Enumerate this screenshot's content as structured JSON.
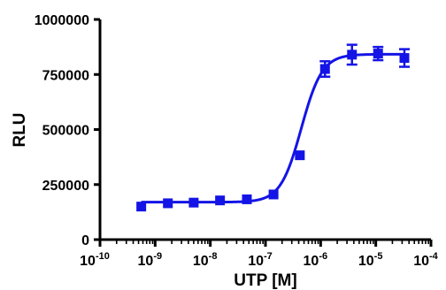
{
  "chart_data": {
    "type": "scatter",
    "xlabel": "UTP [M]",
    "ylabel": "RLU",
    "x_scale": "log",
    "xlim": [
      1e-10,
      0.0001
    ],
    "ylim": [
      0,
      1000000
    ],
    "y_ticks": [
      0,
      250000,
      500000,
      750000,
      1000000
    ],
    "y_tick_labels": [
      "0",
      "250000",
      "500000",
      "750000",
      "1000000"
    ],
    "x_tick_labels": [
      {
        "base": "10",
        "exp": "-10"
      },
      {
        "base": "10",
        "exp": "-9"
      },
      {
        "base": "10",
        "exp": "-8"
      },
      {
        "base": "10",
        "exp": "-7"
      },
      {
        "base": "10",
        "exp": "-6"
      },
      {
        "base": "10",
        "exp": "-5"
      },
      {
        "base": "10",
        "exp": "-4"
      }
    ],
    "grid": false,
    "marker": "square",
    "color": "#1414e6",
    "series": [
      {
        "x": [
          5.6e-10,
          1.7e-09,
          5e-09,
          1.5e-08,
          4.6e-08,
          1.4e-07,
          4.2e-07,
          1.2e-06,
          3.7e-06,
          1.1e-05,
          3.3e-05
        ],
        "y": [
          150000,
          165000,
          168000,
          178000,
          183000,
          205000,
          383000,
          775000,
          840000,
          845000,
          825000
        ],
        "yerr": [
          8000,
          6000,
          5000,
          7000,
          6000,
          9000,
          12000,
          35000,
          45000,
          30000,
          40000
        ]
      }
    ],
    "fit": {
      "type": "sigmoidal dose-response",
      "bottom": 170000,
      "top": 842000,
      "log_ec50": -6.35,
      "hill": 2.3
    }
  }
}
